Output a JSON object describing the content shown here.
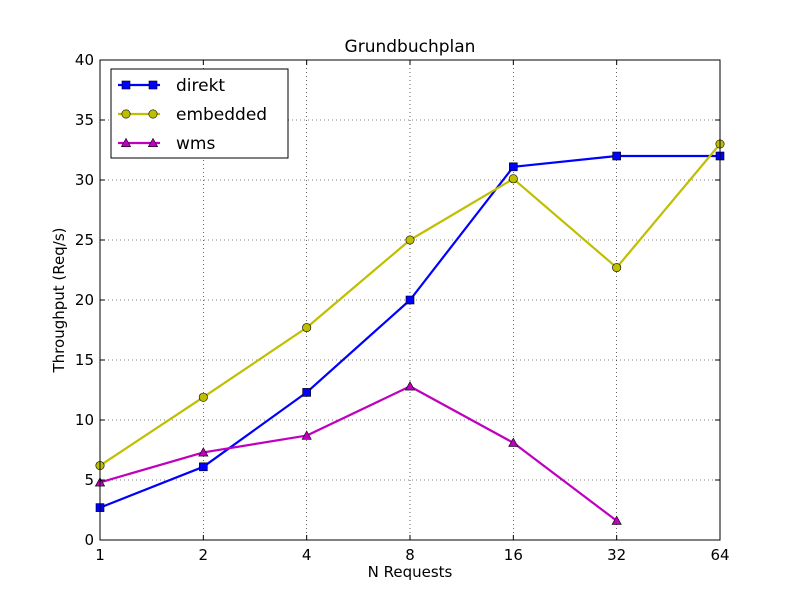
{
  "chart_data": {
    "type": "line",
    "title": "Grundbuchplan",
    "xlabel": "N Requests",
    "ylabel": "Throughput (Req/s)",
    "x": [
      1,
      2,
      4,
      8,
      16,
      32,
      64
    ],
    "x_scale": "log2",
    "x_tick_labels": [
      "1",
      "2",
      "4",
      "8",
      "16",
      "32",
      "64"
    ],
    "ylim": [
      0,
      40
    ],
    "y_ticks": [
      0,
      5,
      10,
      15,
      20,
      25,
      30,
      35,
      40
    ],
    "y_tick_labels": [
      "0",
      "5",
      "10",
      "15",
      "20",
      "25",
      "30",
      "35",
      "40"
    ],
    "grid": true,
    "legend_position": "top-left",
    "series": [
      {
        "name": "direkt",
        "color": "#0000ff",
        "marker": "square",
        "values": [
          2.7,
          6.1,
          12.3,
          20.0,
          31.1,
          32.0,
          32.0
        ]
      },
      {
        "name": "embedded",
        "color": "#bfbf00",
        "marker": "circle",
        "values": [
          6.2,
          11.9,
          17.7,
          25.0,
          30.1,
          22.7,
          33.0
        ]
      },
      {
        "name": "wms",
        "color": "#bf00bf",
        "marker": "triangle",
        "values": [
          4.8,
          7.3,
          8.7,
          12.8,
          8.1,
          1.6,
          null
        ]
      }
    ]
  }
}
